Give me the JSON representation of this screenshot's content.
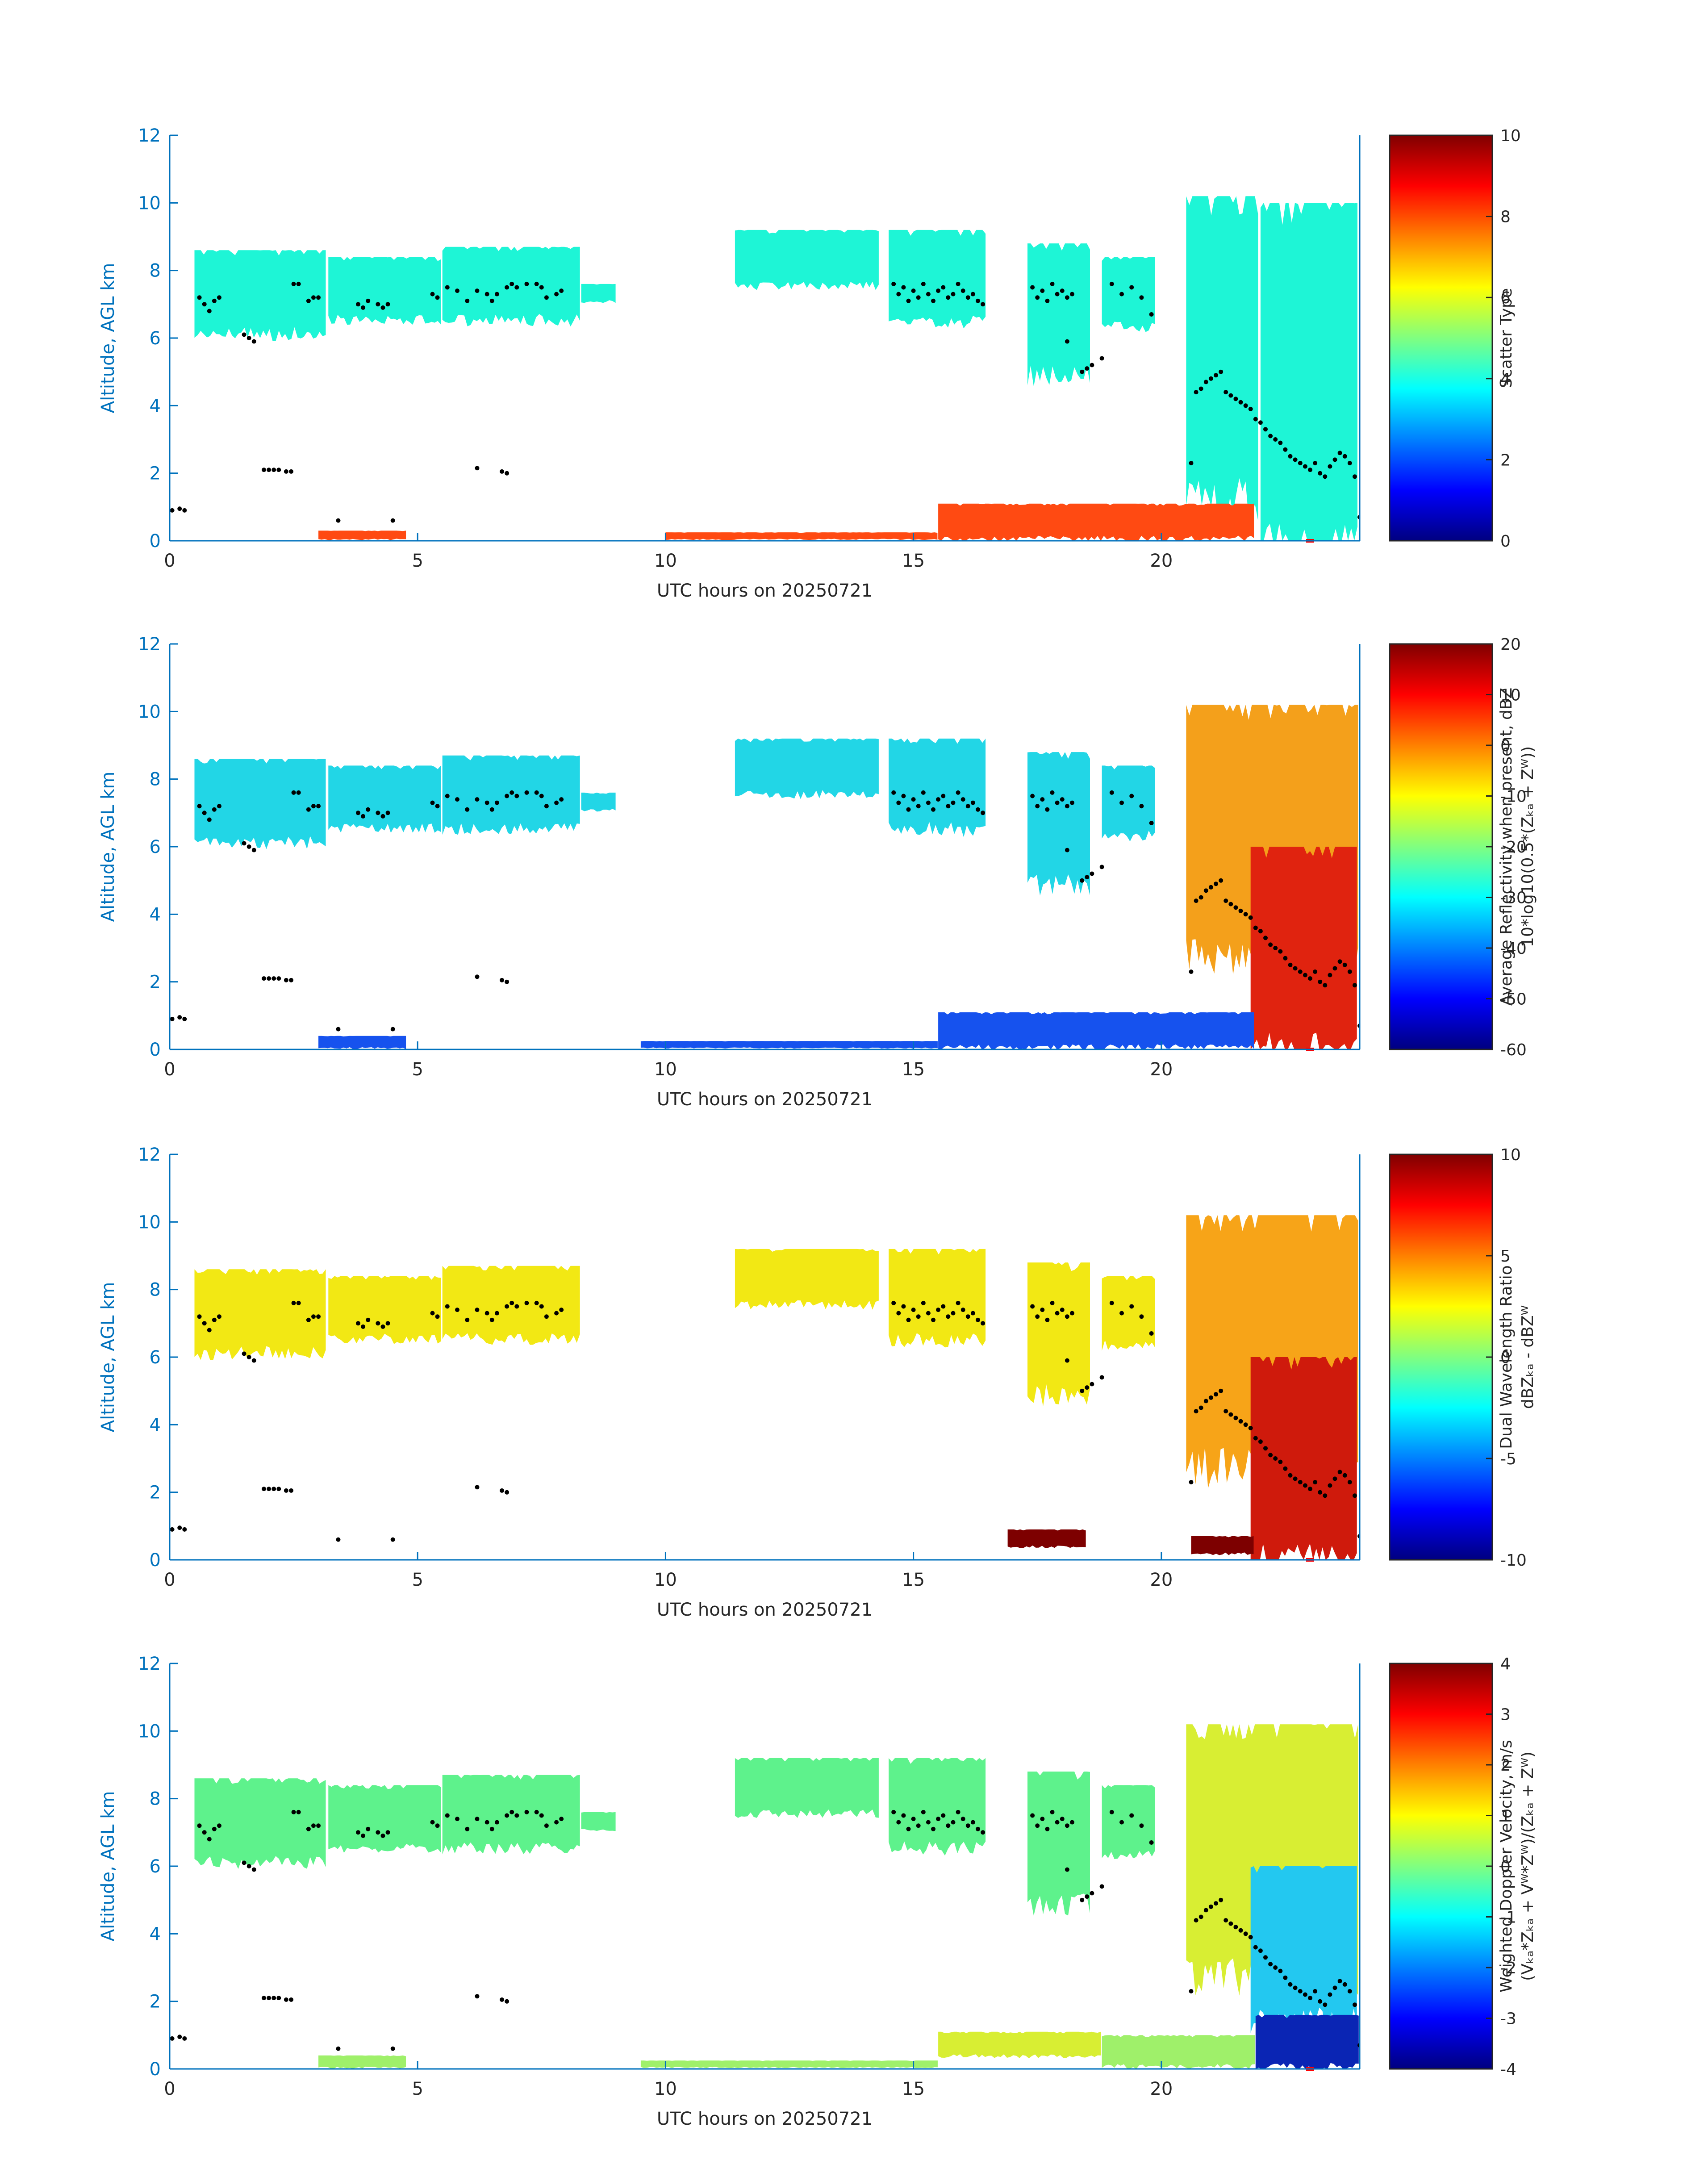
{
  "chart_data": [
    {
      "type": "heatmap",
      "panel": 1,
      "xlabel": "UTC hours on 20250721",
      "ylabel": "Altitude, AGL km",
      "xlim": [
        0,
        24
      ],
      "ylim": [
        0,
        12
      ],
      "xticks": [
        0,
        5,
        10,
        15,
        20
      ],
      "yticks": [
        0,
        2,
        4,
        6,
        8,
        10,
        12
      ],
      "colorbar": {
        "label": "Scatter Type",
        "lines": [
          "Scatter Type"
        ],
        "range": [
          0,
          10
        ],
        "ticks": [
          0,
          2,
          4,
          6,
          8,
          10
        ]
      },
      "fields": [
        {
          "value": 3.8,
          "color": "#1ef5d6",
          "regions": [
            {
              "x0": 0.5,
              "x1": 3.2,
              "ybot": 6.2,
              "ytop": 8.6
            },
            {
              "x0": 3.2,
              "x1": 5.5,
              "ybot": 6.6,
              "ytop": 8.4
            },
            {
              "x0": 5.5,
              "x1": 8.3,
              "ybot": 6.6,
              "ytop": 8.7
            },
            {
              "x0": 8.3,
              "x1": 9.0,
              "ybot": 7.1,
              "ytop": 7.6
            },
            {
              "x0": 11.4,
              "x1": 14.3,
              "ybot": 7.6,
              "ytop": 9.2
            },
            {
              "x0": 14.5,
              "x1": 16.5,
              "ybot": 6.6,
              "ytop": 9.2
            },
            {
              "x0": 17.3,
              "x1": 18.6,
              "ybot": 5.0,
              "ytop": 8.8
            },
            {
              "x0": 18.8,
              "x1": 19.9,
              "ybot": 6.4,
              "ytop": 8.4
            },
            {
              "x0": 20.5,
              "x1": 22.0,
              "ybot": 1.5,
              "ytop": 10.2
            },
            {
              "x0": 22.0,
              "x1": 24.0,
              "ybot": 0.0,
              "ytop": 10.0
            }
          ]
        },
        {
          "value": 8.5,
          "color": "#ff4a12",
          "regions": [
            {
              "x0": 15.5,
              "x1": 21.9,
              "ybot": 0.1,
              "ytop": 1.1
            },
            {
              "x0": 10.0,
              "x1": 15.5,
              "ybot": 0.05,
              "ytop": 0.25
            },
            {
              "x0": 3.0,
              "x1": 4.8,
              "ybot": 0.05,
              "ytop": 0.3
            }
          ]
        }
      ]
    },
    {
      "type": "heatmap",
      "panel": 2,
      "xlabel": "UTC hours on 20250721",
      "ylabel": "Altitude, AGL km",
      "xlim": [
        0,
        24
      ],
      "ylim": [
        0,
        12
      ],
      "xticks": [
        0,
        5,
        10,
        15,
        20
      ],
      "yticks": [
        0,
        2,
        4,
        6,
        8,
        10,
        12
      ],
      "colorbar": {
        "label": "Average Reflectivity when present, dBZ 10*log10(0.5*(Z_Ka + Z_W))",
        "lines": [
          "Average Reflectivity when present, dBZ",
          "10*log10(0.5*(Zₖₐ + Zᵂ))"
        ],
        "range": [
          -60,
          20
        ],
        "ticks": [
          -60,
          -50,
          -40,
          -30,
          -20,
          -10,
          0,
          10,
          20
        ]
      },
      "fields": [
        {
          "value": -28,
          "color": "#22d6e6",
          "regions": [
            {
              "x0": 0.5,
              "x1": 3.2,
              "ybot": 6.2,
              "ytop": 8.6
            },
            {
              "x0": 3.2,
              "x1": 5.5,
              "ybot": 6.6,
              "ytop": 8.4
            },
            {
              "x0": 5.5,
              "x1": 8.3,
              "ybot": 6.6,
              "ytop": 8.7
            },
            {
              "x0": 8.3,
              "x1": 9.0,
              "ybot": 7.1,
              "ytop": 7.6
            },
            {
              "x0": 11.4,
              "x1": 14.3,
              "ybot": 7.6,
              "ytop": 9.2
            },
            {
              "x0": 14.5,
              "x1": 16.5,
              "ybot": 6.6,
              "ytop": 9.2
            },
            {
              "x0": 17.3,
              "x1": 18.6,
              "ybot": 5.0,
              "ytop": 8.8
            },
            {
              "x0": 18.8,
              "x1": 19.9,
              "ybot": 6.4,
              "ytop": 8.4
            }
          ]
        },
        {
          "value": -8,
          "color": "#f4a01b",
          "regions": [
            {
              "x0": 20.5,
              "x1": 24.0,
              "ybot": 3.0,
              "ytop": 10.2
            }
          ]
        },
        {
          "value": 6,
          "color": "#e0230f",
          "regions": [
            {
              "x0": 21.8,
              "x1": 24.0,
              "ybot": 0.2,
              "ytop": 6.0
            }
          ]
        },
        {
          "value": -48,
          "color": "#1652ee",
          "regions": [
            {
              "x0": 15.5,
              "x1": 21.9,
              "ybot": 0.1,
              "ytop": 1.1
            },
            {
              "x0": 9.5,
              "x1": 15.5,
              "ybot": 0.05,
              "ytop": 0.25
            },
            {
              "x0": 3.0,
              "x1": 4.8,
              "ybot": 0.05,
              "ytop": 0.4
            }
          ]
        }
      ]
    },
    {
      "type": "heatmap",
      "panel": 3,
      "xlabel": "UTC hours on 20250721",
      "ylabel": "Altitude, AGL km",
      "xlim": [
        0,
        24
      ],
      "ylim": [
        0,
        12
      ],
      "xticks": [
        0,
        5,
        10,
        15,
        20
      ],
      "yticks": [
        0,
        2,
        4,
        6,
        8,
        10,
        12
      ],
      "colorbar": {
        "label": "Dual Wavelength Ratio dBZ_Ka - dBZ_W",
        "lines": [
          "Dual Wavelength Ratio",
          "dBZₖₐ - dBZᵂ"
        ],
        "range": [
          -10,
          10
        ],
        "ticks": [
          -10,
          -5,
          0,
          5,
          10
        ]
      },
      "fields": [
        {
          "value": 2,
          "color": "#f2e814",
          "regions": [
            {
              "x0": 0.5,
              "x1": 3.2,
              "ybot": 6.2,
              "ytop": 8.6
            },
            {
              "x0": 3.2,
              "x1": 5.5,
              "ybot": 6.6,
              "ytop": 8.4
            },
            {
              "x0": 5.5,
              "x1": 8.3,
              "ybot": 6.6,
              "ytop": 8.7
            },
            {
              "x0": 11.4,
              "x1": 14.3,
              "ybot": 7.6,
              "ytop": 9.2
            },
            {
              "x0": 14.5,
              "x1": 16.5,
              "ybot": 6.6,
              "ytop": 9.2
            },
            {
              "x0": 17.3,
              "x1": 18.6,
              "ybot": 5.0,
              "ytop": 8.8
            },
            {
              "x0": 18.8,
              "x1": 19.9,
              "ybot": 6.4,
              "ytop": 8.4
            }
          ]
        },
        {
          "value": 4,
          "color": "#f7a418",
          "regions": [
            {
              "x0": 20.5,
              "x1": 24.0,
              "ybot": 3.0,
              "ytop": 10.2
            }
          ]
        },
        {
          "value": 7.5,
          "color": "#cf1a0c",
          "regions": [
            {
              "x0": 21.8,
              "x1": 24.0,
              "ybot": 0.2,
              "ytop": 6.0
            }
          ]
        },
        {
          "value": 10,
          "color": "#7d0000",
          "regions": [
            {
              "x0": 16.9,
              "x1": 18.5,
              "ybot": 0.4,
              "ytop": 0.9
            },
            {
              "x0": 20.6,
              "x1": 21.9,
              "ybot": 0.2,
              "ytop": 0.7
            }
          ]
        }
      ]
    },
    {
      "type": "heatmap",
      "panel": 4,
      "xlabel": "UTC hours on 20250721",
      "ylabel": "Altitude, AGL km",
      "xlim": [
        0,
        24
      ],
      "ylim": [
        0,
        12
      ],
      "xticks": [
        0,
        5,
        10,
        15,
        20
      ],
      "yticks": [
        0,
        2,
        4,
        6,
        8,
        10,
        12
      ],
      "colorbar": {
        "label": "Weighted Doppler Velocity, m/s (V_Ka*Z_Ka + V_W*Z_W)/(Z_Ka + Z_W)",
        "lines": [
          "Weighted Doppler Velocity, m/s",
          "(Vₖₐ*Zₖₐ + Vᵂ*Zᵂ)/(Zₖₐ + Zᵂ)"
        ],
        "range": [
          -4,
          4
        ],
        "ticks": [
          -4,
          -3,
          -2,
          -1,
          0,
          1,
          2,
          3,
          4
        ]
      },
      "fields": [
        {
          "value": -0.4,
          "color": "#5ef28c",
          "regions": [
            {
              "x0": 0.5,
              "x1": 3.2,
              "ybot": 6.2,
              "ytop": 8.6
            },
            {
              "x0": 3.2,
              "x1": 5.5,
              "ybot": 6.6,
              "ytop": 8.4
            },
            {
              "x0": 5.5,
              "x1": 8.3,
              "ybot": 6.6,
              "ytop": 8.7
            },
            {
              "x0": 8.3,
              "x1": 9.0,
              "ybot": 7.1,
              "ytop": 7.6
            },
            {
              "x0": 11.4,
              "x1": 14.3,
              "ybot": 7.6,
              "ytop": 9.2
            },
            {
              "x0": 14.5,
              "x1": 16.5,
              "ybot": 6.6,
              "ytop": 9.2
            },
            {
              "x0": 17.3,
              "x1": 18.6,
              "ybot": 5.0,
              "ytop": 8.8
            },
            {
              "x0": 18.8,
              "x1": 19.9,
              "ybot": 6.4,
              "ytop": 8.4
            }
          ]
        },
        {
          "value": 0.6,
          "color": "#d8ee33",
          "regions": [
            {
              "x0": 20.5,
              "x1": 24.0,
              "ybot": 3.0,
              "ytop": 10.2
            },
            {
              "x0": 15.5,
              "x1": 18.8,
              "ybot": 0.4,
              "ytop": 1.1
            }
          ]
        },
        {
          "value": -1.2,
          "color": "#23c8f0",
          "regions": [
            {
              "x0": 21.8,
              "x1": 24.0,
              "ybot": 1.6,
              "ytop": 6.0
            }
          ]
        },
        {
          "value": -3.4,
          "color": "#0a25b4",
          "regions": [
            {
              "x0": 21.9,
              "x1": 24.0,
              "ybot": 0.1,
              "ytop": 1.6
            }
          ]
        },
        {
          "value": 0.0,
          "color": "#9ff06a",
          "regions": [
            {
              "x0": 18.8,
              "x1": 21.9,
              "ybot": 0.1,
              "ytop": 1.0
            },
            {
              "x0": 9.5,
              "x1": 15.5,
              "ybot": 0.05,
              "ytop": 0.25
            },
            {
              "x0": 3.0,
              "x1": 4.8,
              "ybot": 0.05,
              "ytop": 0.4
            }
          ]
        }
      ]
    }
  ],
  "overlay": {
    "marker_color": "#000000",
    "points": [
      [
        0.05,
        0.9
      ],
      [
        0.2,
        0.95
      ],
      [
        0.3,
        0.9
      ],
      [
        0.6,
        7.2
      ],
      [
        0.7,
        7.0
      ],
      [
        0.8,
        6.8
      ],
      [
        0.9,
        7.1
      ],
      [
        1.0,
        7.2
      ],
      [
        1.5,
        6.1
      ],
      [
        1.6,
        6.0
      ],
      [
        1.7,
        5.9
      ],
      [
        1.9,
        2.1
      ],
      [
        2.0,
        2.1
      ],
      [
        2.1,
        2.1
      ],
      [
        2.2,
        2.1
      ],
      [
        2.35,
        2.05
      ],
      [
        2.45,
        2.05
      ],
      [
        2.5,
        7.6
      ],
      [
        2.6,
        7.6
      ],
      [
        2.8,
        7.1
      ],
      [
        2.9,
        7.2
      ],
      [
        3.0,
        7.2
      ],
      [
        3.4,
        0.6
      ],
      [
        4.5,
        0.6
      ],
      [
        3.8,
        7.0
      ],
      [
        3.9,
        6.9
      ],
      [
        4.0,
        7.1
      ],
      [
        4.2,
        7.0
      ],
      [
        4.3,
        6.9
      ],
      [
        4.4,
        7.0
      ],
      [
        5.3,
        7.3
      ],
      [
        5.4,
        7.2
      ],
      [
        5.6,
        7.5
      ],
      [
        5.8,
        7.4
      ],
      [
        6.0,
        7.1
      ],
      [
        6.2,
        7.4
      ],
      [
        6.4,
        7.3
      ],
      [
        6.5,
        7.1
      ],
      [
        6.6,
        7.3
      ],
      [
        6.8,
        7.5
      ],
      [
        6.9,
        7.6
      ],
      [
        7.0,
        7.5
      ],
      [
        7.2,
        7.6
      ],
      [
        7.4,
        7.6
      ],
      [
        7.5,
        7.5
      ],
      [
        7.6,
        7.2
      ],
      [
        7.8,
        7.3
      ],
      [
        7.9,
        7.4
      ],
      [
        6.2,
        2.15
      ],
      [
        6.7,
        2.05
      ],
      [
        6.8,
        2.0
      ],
      [
        14.6,
        7.6
      ],
      [
        14.7,
        7.3
      ],
      [
        14.8,
        7.5
      ],
      [
        14.9,
        7.1
      ],
      [
        15.0,
        7.4
      ],
      [
        15.1,
        7.2
      ],
      [
        15.2,
        7.6
      ],
      [
        15.3,
        7.3
      ],
      [
        15.4,
        7.1
      ],
      [
        15.5,
        7.4
      ],
      [
        15.6,
        7.5
      ],
      [
        15.7,
        7.2
      ],
      [
        15.8,
        7.3
      ],
      [
        15.9,
        7.6
      ],
      [
        16.0,
        7.4
      ],
      [
        16.1,
        7.2
      ],
      [
        16.2,
        7.3
      ],
      [
        16.3,
        7.1
      ],
      [
        16.4,
        7.0
      ],
      [
        17.4,
        7.5
      ],
      [
        17.5,
        7.2
      ],
      [
        17.6,
        7.4
      ],
      [
        17.7,
        7.1
      ],
      [
        17.8,
        7.6
      ],
      [
        17.9,
        7.3
      ],
      [
        18.0,
        7.4
      ],
      [
        18.1,
        7.2
      ],
      [
        18.2,
        7.3
      ],
      [
        18.1,
        5.9
      ],
      [
        18.4,
        5.0
      ],
      [
        18.5,
        5.1
      ],
      [
        18.6,
        5.2
      ],
      [
        18.8,
        5.4
      ],
      [
        19.0,
        7.6
      ],
      [
        19.2,
        7.3
      ],
      [
        19.4,
        7.5
      ],
      [
        19.6,
        7.2
      ],
      [
        19.8,
        6.7
      ],
      [
        20.6,
        2.3
      ],
      [
        20.7,
        4.4
      ],
      [
        20.8,
        4.5
      ],
      [
        20.9,
        4.7
      ],
      [
        21.0,
        4.8
      ],
      [
        21.1,
        4.9
      ],
      [
        21.2,
        5.0
      ],
      [
        21.3,
        4.4
      ],
      [
        21.4,
        4.3
      ],
      [
        21.5,
        4.2
      ],
      [
        21.6,
        4.1
      ],
      [
        21.7,
        4.0
      ],
      [
        21.8,
        3.9
      ],
      [
        21.9,
        3.6
      ],
      [
        22.0,
        3.5
      ],
      [
        22.1,
        3.3
      ],
      [
        22.2,
        3.1
      ],
      [
        22.3,
        3.0
      ],
      [
        22.4,
        2.9
      ],
      [
        22.5,
        2.7
      ],
      [
        22.6,
        2.5
      ],
      [
        22.7,
        2.4
      ],
      [
        22.8,
        2.3
      ],
      [
        22.9,
        2.2
      ],
      [
        23.0,
        2.1
      ],
      [
        23.1,
        2.3
      ],
      [
        23.2,
        2.0
      ],
      [
        23.3,
        1.9
      ],
      [
        23.4,
        2.2
      ],
      [
        23.5,
        2.4
      ],
      [
        23.6,
        2.6
      ],
      [
        23.7,
        2.5
      ],
      [
        23.8,
        2.3
      ],
      [
        23.9,
        1.9
      ],
      [
        24.0,
        0.7
      ]
    ],
    "redmark": {
      "x": 23.0,
      "y": 0.0,
      "color": "#ff0000"
    }
  }
}
